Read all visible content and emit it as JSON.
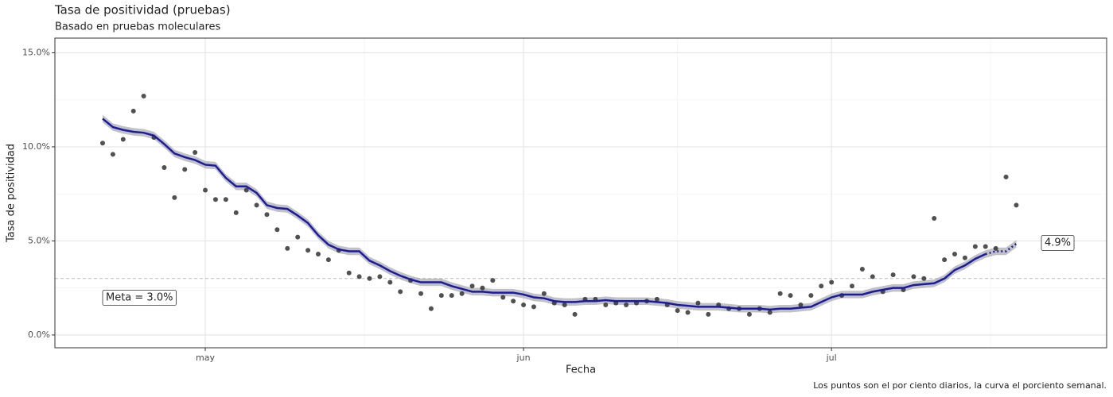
{
  "chart_data": {
    "type": "scatter-smooth",
    "title": "Tasa de positividad (pruebas)",
    "subtitle": "Basado en pruebas moleculares",
    "x_label": "Fecha",
    "y_label": "Tasa de positividad",
    "caption": "Los puntos son el por ciento diarios, la curva el porciento semanal.",
    "xlim": [
      -14.65,
      87.8
    ],
    "xticks": [
      {
        "value": 0,
        "label": "may"
      },
      {
        "value": 31,
        "label": "jun"
      },
      {
        "value": 61,
        "label": "jul"
      }
    ],
    "xminor": [
      15.5,
      46,
      76.5
    ],
    "ylim": [
      -0.68,
      15.78
    ],
    "yticks": [
      {
        "value": 0,
        "label": "0.0%"
      },
      {
        "value": 5,
        "label": "5.0%"
      },
      {
        "value": 10,
        "label": "10.0%"
      },
      {
        "value": 15,
        "label": "15.0%"
      }
    ],
    "yminor": [
      2.5,
      7.5,
      12.5
    ],
    "grid": true,
    "x": [
      -10,
      -9,
      -8,
      -7,
      -6,
      -5,
      -4,
      -3,
      -2,
      -1,
      0,
      1,
      2,
      3,
      4,
      5,
      6,
      7,
      8,
      9,
      10,
      11,
      12,
      13,
      14,
      15,
      16,
      17,
      18,
      19,
      20,
      21,
      22,
      23,
      24,
      25,
      26,
      27,
      28,
      29,
      30,
      31,
      32,
      33,
      34,
      35,
      36,
      37,
      38,
      39,
      40,
      41,
      42,
      43,
      44,
      45,
      46,
      47,
      48,
      49,
      50,
      51,
      52,
      53,
      54,
      55,
      56,
      57,
      58,
      59,
      60,
      61,
      62,
      63,
      64,
      65,
      66,
      67,
      68,
      69,
      70,
      71,
      72,
      73,
      74,
      75,
      76,
      77,
      78,
      79
    ],
    "points": {
      "color": "#333333",
      "values": [
        10.2,
        9.6,
        10.4,
        11.9,
        12.7,
        10.5,
        8.9,
        7.3,
        8.8,
        9.7,
        7.7,
        7.2,
        7.2,
        6.5,
        7.7,
        6.9,
        6.4,
        5.6,
        4.6,
        5.2,
        4.5,
        4.3,
        4.0,
        4.5,
        3.3,
        3.1,
        3.0,
        3.1,
        2.8,
        2.3,
        2.9,
        2.2,
        1.4,
        2.1,
        2.1,
        2.2,
        2.6,
        2.5,
        2.9,
        2.0,
        1.8,
        1.6,
        1.5,
        2.2,
        1.7,
        1.6,
        1.1,
        1.9,
        1.9,
        1.6,
        1.7,
        1.6,
        1.7,
        1.8,
        1.9,
        1.6,
        1.3,
        1.2,
        1.7,
        1.1,
        1.6,
        1.4,
        1.4,
        1.1,
        1.4,
        1.2,
        2.2,
        2.1,
        1.6,
        2.1,
        2.6,
        2.8,
        2.1,
        2.6,
        3.5,
        3.1,
        2.3,
        3.2,
        2.4,
        3.1,
        3.0,
        6.2,
        4.0,
        4.3,
        4.1,
        4.7,
        4.7,
        4.6,
        8.4,
        6.9
      ]
    },
    "curve": {
      "color": "#1a1aa6",
      "values": [
        11.5,
        11.05,
        10.9,
        10.8,
        10.75,
        10.6,
        10.15,
        9.65,
        9.45,
        9.3,
        9.05,
        9.0,
        8.35,
        7.9,
        7.9,
        7.55,
        6.9,
        6.75,
        6.7,
        6.35,
        5.95,
        5.3,
        4.8,
        4.55,
        4.45,
        4.45,
        3.95,
        3.7,
        3.4,
        3.15,
        2.95,
        2.8,
        2.8,
        2.8,
        2.6,
        2.45,
        2.3,
        2.3,
        2.25,
        2.25,
        2.25,
        2.15,
        2.0,
        1.95,
        1.8,
        1.75,
        1.75,
        1.8,
        1.8,
        1.85,
        1.8,
        1.8,
        1.8,
        1.8,
        1.75,
        1.7,
        1.6,
        1.55,
        1.5,
        1.5,
        1.5,
        1.45,
        1.4,
        1.4,
        1.4,
        1.35,
        1.4,
        1.4,
        1.45,
        1.5,
        1.75,
        2.0,
        2.15,
        2.15,
        2.15,
        2.3,
        2.4,
        2.5,
        2.5,
        2.65,
        2.7,
        2.75,
        3.0,
        3.45,
        3.7,
        4.05,
        4.3,
        null,
        null,
        null
      ],
      "dotted_values": [
        null,
        null,
        null,
        null,
        null,
        null,
        null,
        null,
        null,
        null,
        null,
        null,
        null,
        null,
        null,
        null,
        null,
        null,
        null,
        null,
        null,
        null,
        null,
        null,
        null,
        null,
        null,
        null,
        null,
        null,
        null,
        null,
        null,
        null,
        null,
        null,
        null,
        null,
        null,
        null,
        null,
        null,
        null,
        null,
        null,
        null,
        null,
        null,
        null,
        null,
        null,
        null,
        null,
        null,
        null,
        null,
        null,
        null,
        null,
        null,
        null,
        null,
        null,
        null,
        null,
        null,
        null,
        null,
        null,
        null,
        null,
        null,
        null,
        null,
        null,
        null,
        null,
        null,
        null,
        null,
        null,
        null,
        null,
        null,
        null,
        null,
        4.3,
        4.45,
        4.45,
        4.85
      ],
      "end_label": "4.9%"
    },
    "band": {
      "color": "#999999",
      "halfwidth": 0.2
    },
    "target": {
      "value": 3.0,
      "label": "Meta = 3.0%",
      "color": "#bbbbbb"
    }
  }
}
